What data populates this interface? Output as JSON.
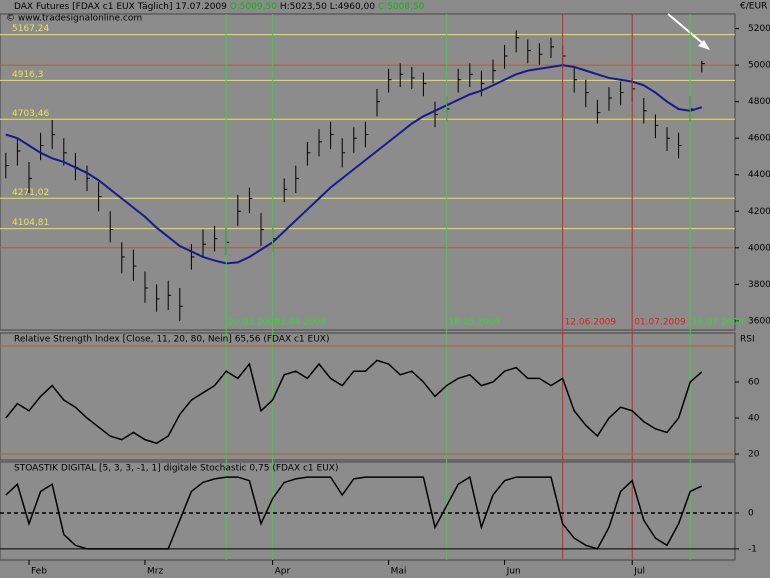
{
  "chart_data": [
    {
      "type": "ohlc",
      "title": "DAX Futures [FDAX c1 EUX Täglich] 17.07.2009",
      "quote": [
        {
          "label": "O:5009,50",
          "color": "#00c000"
        },
        {
          "label": "H:5023,50",
          "color": "#000000"
        },
        {
          "label": "L:4960,00",
          "color": "#000000"
        },
        {
          "label": "C:5008,50",
          "color": "#00c000"
        }
      ],
      "source": "© www.tradesignalonline.com",
      "y_axis_label": "€/EUR",
      "color": "#000000",
      "categories": [
        null,
        null,
        "Feb",
        null,
        null,
        null,
        null,
        null,
        null,
        null,
        null,
        null,
        "Mrz",
        null,
        null,
        null,
        null,
        null,
        null,
        null,
        null,
        null,
        null,
        "Apr",
        null,
        null,
        null,
        null,
        null,
        null,
        null,
        null,
        null,
        "Mai",
        null,
        null,
        null,
        null,
        null,
        null,
        null,
        null,
        null,
        "Jun",
        null,
        null,
        null,
        null,
        null,
        null,
        null,
        null,
        null,
        null,
        "Jul",
        null,
        null,
        null,
        null,
        null,
        null
      ],
      "high": [
        4520,
        4600,
        4470,
        4630,
        4700,
        4600,
        4520,
        4450,
        4360,
        4200,
        4030,
        3990,
        3870,
        3800,
        3820,
        3780,
        4020,
        4100,
        4120,
        4110,
        4290,
        4330,
        4190,
        4120,
        4380,
        4450,
        4580,
        4650,
        4690,
        4600,
        4660,
        4690,
        4870,
        4980,
        5010,
        4990,
        4960,
        4800,
        4830,
        4980,
        5010,
        4970,
        5030,
        5110,
        5190,
        5140,
        5120,
        5150,
        5110,
        4990,
        4920,
        4810,
        4880,
        4910,
        4930,
        4820,
        4730,
        4660,
        4630,
        4830,
        5023.5
      ],
      "low": [
        4380,
        4450,
        4300,
        4480,
        4540,
        4450,
        4370,
        4310,
        4200,
        4030,
        3860,
        3820,
        3700,
        3650,
        3660,
        3600,
        3880,
        3950,
        3980,
        3960,
        4120,
        4190,
        4010,
        3980,
        4250,
        4300,
        4450,
        4500,
        4540,
        4440,
        4520,
        4550,
        4720,
        4850,
        4880,
        4870,
        4830,
        4660,
        4690,
        4850,
        4880,
        4830,
        4900,
        4980,
        5070,
        5010,
        5000,
        5040,
        4980,
        4850,
        4770,
        4680,
        4750,
        4780,
        4800,
        4680,
        4600,
        4530,
        4490,
        4690,
        4960
      ],
      "close": [
        4450,
        4530,
        4380,
        4560,
        4620,
        4520,
        4440,
        4380,
        4280,
        4100,
        3950,
        3900,
        3780,
        3720,
        3740,
        3680,
        3950,
        4020,
        4050,
        4030,
        4200,
        4270,
        4100,
        4050,
        4320,
        4380,
        4520,
        4580,
        4620,
        4520,
        4600,
        4620,
        4800,
        4920,
        4950,
        4930,
        4900,
        4730,
        4760,
        4920,
        4950,
        4900,
        4970,
        5050,
        5150,
        5080,
        5060,
        5100,
        5050,
        4920,
        4850,
        4740,
        4820,
        4850,
        4870,
        4750,
        4670,
        4600,
        4560,
        4760,
        5008.5
      ],
      "moving_average": {
        "color": "#1a1a8c",
        "values": [
          4620,
          4600,
          4560,
          4520,
          4490,
          4470,
          4440,
          4410,
          4370,
          4320,
          4270,
          4220,
          4170,
          4110,
          4060,
          4010,
          3980,
          3950,
          3930,
          3915,
          3920,
          3950,
          3990,
          4030,
          4090,
          4150,
          4210,
          4270,
          4330,
          4380,
          4430,
          4480,
          4530,
          4580,
          4630,
          4680,
          4720,
          4750,
          4780,
          4810,
          4840,
          4860,
          4890,
          4920,
          4950,
          4970,
          4980,
          4990,
          5000,
          4990,
          4970,
          4950,
          4930,
          4920,
          4910,
          4890,
          4850,
          4800,
          4760,
          4750,
          4770
        ]
      },
      "levels": [
        {
          "value": 5167.24,
          "label": "5167,24"
        },
        {
          "value": 4916.3,
          "label": "4916,3"
        },
        {
          "value": 4703.46,
          "label": "4703,46"
        },
        {
          "value": 4271.02,
          "label": "4271,02"
        },
        {
          "value": 4104.81,
          "label": "4104,81"
        }
      ],
      "level_color": "#e6e64c",
      "reference_lines": [
        5000,
        4000
      ],
      "reference_color": "#b0602c",
      "markers": [
        {
          "index": 19,
          "label": "20.03.2009",
          "color": "#33d633"
        },
        {
          "index": 23,
          "label": "01.04.2009",
          "color": "#33d633"
        },
        {
          "index": 38,
          "label": "18.05.2009",
          "color": "#33d633"
        },
        {
          "index": 48,
          "label": "12.06.2009",
          "color": "#e02020"
        },
        {
          "index": 54,
          "label": "01.07.2009",
          "color": "#e02020"
        },
        {
          "index": 59,
          "label": "16.07.2009",
          "color": "#33d633"
        }
      ],
      "ylim": [
        3550,
        5280
      ],
      "yticks": [
        3600,
        3800,
        4000,
        4200,
        4400,
        4600,
        4800,
        5000,
        5200
      ]
    },
    {
      "type": "line",
      "title": "Relative Strength Index [Close, 11, 20, 80, Nein] 65,56 (FDAX c1 EUX)",
      "y_axis_label": "RSI",
      "color": "#000000",
      "values": [
        40,
        48,
        44,
        52,
        58,
        50,
        46,
        40,
        35,
        30,
        28,
        32,
        28,
        26,
        30,
        42,
        50,
        54,
        58,
        66,
        62,
        70,
        44,
        50,
        64,
        66,
        62,
        70,
        62,
        58,
        66,
        66,
        72,
        70,
        64,
        66,
        60,
        52,
        58,
        62,
        64,
        58,
        60,
        66,
        68,
        62,
        62,
        58,
        62,
        44,
        36,
        30,
        40,
        46,
        44,
        38,
        34,
        32,
        40,
        60,
        65.56
      ],
      "reference_lines": [
        {
          "value": 80,
          "color": "#b0602c"
        },
        {
          "value": 20,
          "color": "#b0602c"
        }
      ],
      "ylim": [
        16.7,
        87.2
      ],
      "yticks": [
        20,
        40,
        60
      ]
    },
    {
      "type": "line",
      "title": "STOASTIK DIGITAL [5, 3, 3, -1, 1] digitale Stochastic 0,75 (FDAX c1 EUX)",
      "color": "#000000",
      "values": [
        0.5,
        0.8,
        -0.3,
        0.6,
        0.8,
        -0.6,
        -0.9,
        -1,
        -1,
        -1,
        -1,
        -1,
        -1,
        -1,
        -1,
        -0.2,
        0.6,
        0.85,
        0.95,
        1,
        1,
        0.9,
        -0.3,
        0.4,
        0.85,
        0.95,
        1,
        1,
        1,
        0.5,
        0.95,
        1,
        1,
        1,
        1,
        1,
        1,
        -0.4,
        0.2,
        0.8,
        1,
        -0.4,
        0.5,
        0.9,
        1,
        1,
        1,
        1,
        -0.3,
        -0.7,
        -0.9,
        -1,
        -0.4,
        0.6,
        0.9,
        -0.2,
        -0.7,
        -0.9,
        -0.3,
        0.6,
        0.75
      ],
      "reference_lines": [
        {
          "value": 0,
          "color": "#000000",
          "dashed": true
        },
        {
          "value": -1,
          "color": "#000000"
        }
      ],
      "ylim": [
        -1.31,
        1.42
      ],
      "yticks": [
        0,
        -1
      ]
    }
  ]
}
